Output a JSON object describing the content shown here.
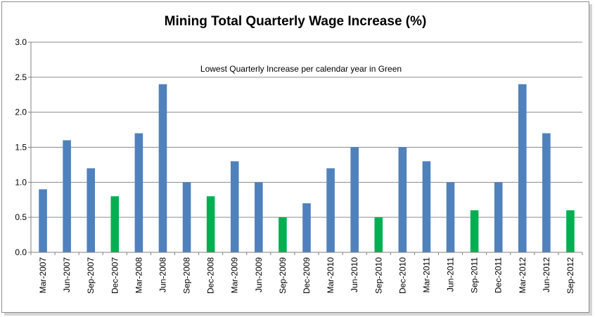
{
  "chart_data": {
    "type": "bar",
    "title": "Mining Total Quarterly Wage Increase (%)",
    "annotation": "Lowest Quarterly Increase per calendar year in Green",
    "xlabel": "",
    "ylabel": "",
    "ylim": [
      0,
      3.0
    ],
    "yticks": [
      "0.0",
      "0.5",
      "1.0",
      "1.5",
      "2.0",
      "2.5",
      "3.0"
    ],
    "grid": true,
    "legend": "none",
    "colors": {
      "default": "#4f81bd",
      "lowest": "#00b050",
      "grid": "#8c8c8c",
      "axis": "#808080"
    },
    "categories": [
      "Mar-2007",
      "Jun-2007",
      "Sep-2007",
      "Dec-2007",
      "Mar-2008",
      "Jun-2008",
      "Sep-2008",
      "Dec-2008",
      "Mar-2009",
      "Jun-2009",
      "Sep-2009",
      "Dec-2009",
      "Mar-2010",
      "Jun-2010",
      "Sep-2010",
      "Dec-2010",
      "Mar-2011",
      "Jun-2011",
      "Sep-2011",
      "Dec-2011",
      "Mar-2012",
      "Jun-2012",
      "Sep-2012"
    ],
    "values": [
      0.9,
      1.6,
      1.2,
      0.8,
      1.7,
      2.4,
      1.0,
      0.8,
      1.3,
      1.0,
      0.5,
      0.7,
      1.2,
      1.5,
      0.5,
      1.5,
      1.3,
      1.0,
      0.6,
      1.0,
      2.4,
      1.7,
      0.6
    ],
    "highlight": [
      false,
      false,
      false,
      true,
      false,
      false,
      false,
      true,
      false,
      false,
      true,
      false,
      false,
      false,
      true,
      false,
      false,
      false,
      true,
      false,
      false,
      false,
      true
    ]
  }
}
